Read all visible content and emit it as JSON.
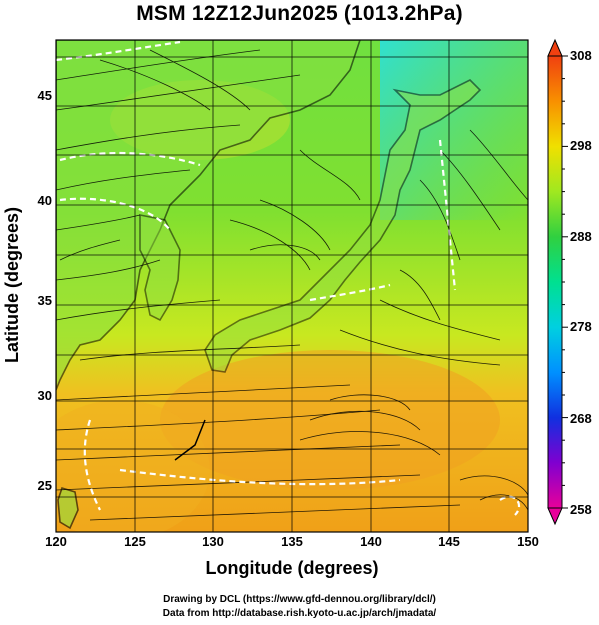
{
  "title": "MSM 12Z12Jun2025 (1013.2hPa)",
  "axes": {
    "xlabel": "Longitude (degrees)",
    "ylabel": "Latitude  (degrees)",
    "xticks": [
      "120",
      "125",
      "130",
      "135",
      "140",
      "145",
      "150"
    ],
    "yticks": [
      "45",
      "40",
      "35",
      "30",
      "25"
    ]
  },
  "colorbar": {
    "ticks": [
      "308",
      "298",
      "288",
      "278",
      "268",
      "258"
    ],
    "colors": [
      "#e8009a",
      "#c000c8",
      "#6000d0",
      "#1030e0",
      "#0090ff",
      "#00d0e0",
      "#00e8a0",
      "#20d040",
      "#80e020",
      "#d0f000",
      "#f0e000",
      "#f8b000",
      "#f88000",
      "#f05010"
    ]
  },
  "credits": {
    "line1": "Drawing by DCL (https://www.gfd-dennou.org/library/dcl/)",
    "line2": "Data from http://database.rish.kyoto-u.ac.jp/arch/jmadata/"
  },
  "map": {
    "field_colors": {
      "north_cool": "#40e0b0",
      "mid_green": "#60d830",
      "south_warm": "#f0a020",
      "coast": "#000000",
      "contour": "#ffffff"
    }
  }
}
